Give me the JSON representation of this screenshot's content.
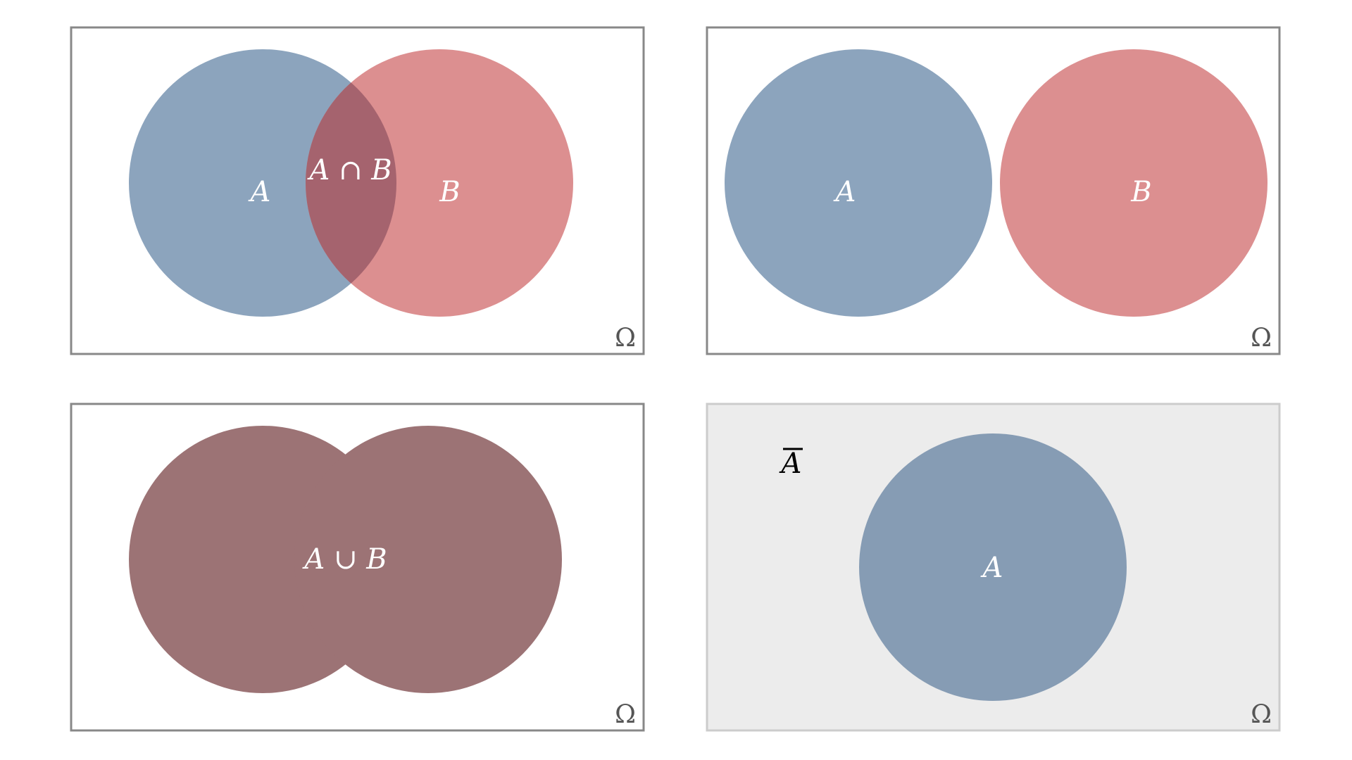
{
  "colors": {
    "set_a": "#8ca4bd",
    "set_b": "#dc8f90",
    "intersection": "#a5636e",
    "union": "#9c7375",
    "complement_bg": "#ececec",
    "frame": "#888888",
    "frame_light": "#cccccc"
  },
  "panels": [
    {
      "kind": "intersection",
      "labels": {
        "a": "A",
        "b": "B",
        "region": "A ∩ B"
      },
      "universe": "Ω"
    },
    {
      "kind": "disjoint",
      "labels": {
        "a": "A",
        "b": "B"
      },
      "universe": "Ω"
    },
    {
      "kind": "union",
      "labels": {
        "region": "A ∪ B"
      },
      "universe": "Ω"
    },
    {
      "kind": "complement",
      "labels": {
        "a": "A",
        "complement": "A"
      },
      "universe": "Ω"
    }
  ]
}
